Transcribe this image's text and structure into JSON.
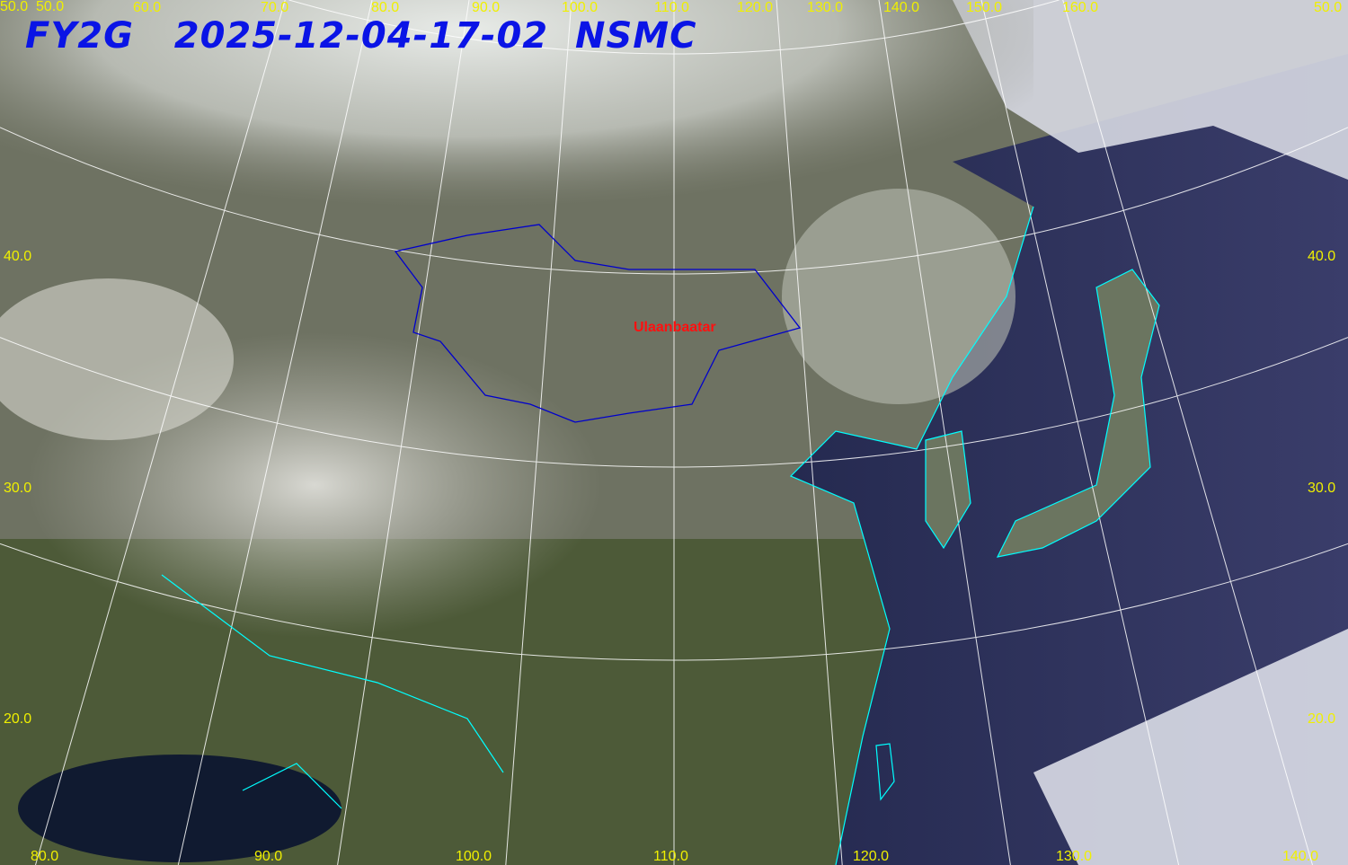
{
  "title": {
    "satellite": "FY2G",
    "datetime": "2025-12-04-17-02",
    "agency": "NSMC"
  },
  "top_lon_labels": [
    "50.0",
    "60.0",
    "70.0",
    "80.0",
    "90.0",
    "100.0",
    "110.0",
    "120.0",
    "130.0",
    "140.0",
    "150.0",
    "160.0"
  ],
  "bottom_lon_labels": [
    "80.0",
    "90.0",
    "100.0",
    "110.0",
    "120.0",
    "130.0",
    "140.0"
  ],
  "left_lat_labels": [
    "50.0",
    "40.0",
    "30.0",
    "20.0"
  ],
  "right_lat_labels": [
    "50.0",
    "40.0",
    "30.0",
    "20.0"
  ],
  "city": "Ulaanbaatar",
  "colors": {
    "title": "#0a14e6",
    "grid_labels": "#f0f000",
    "coastline": "#00ffff",
    "border": "#0000cc",
    "city": "#ff1010",
    "graticule": "#ffffff"
  }
}
